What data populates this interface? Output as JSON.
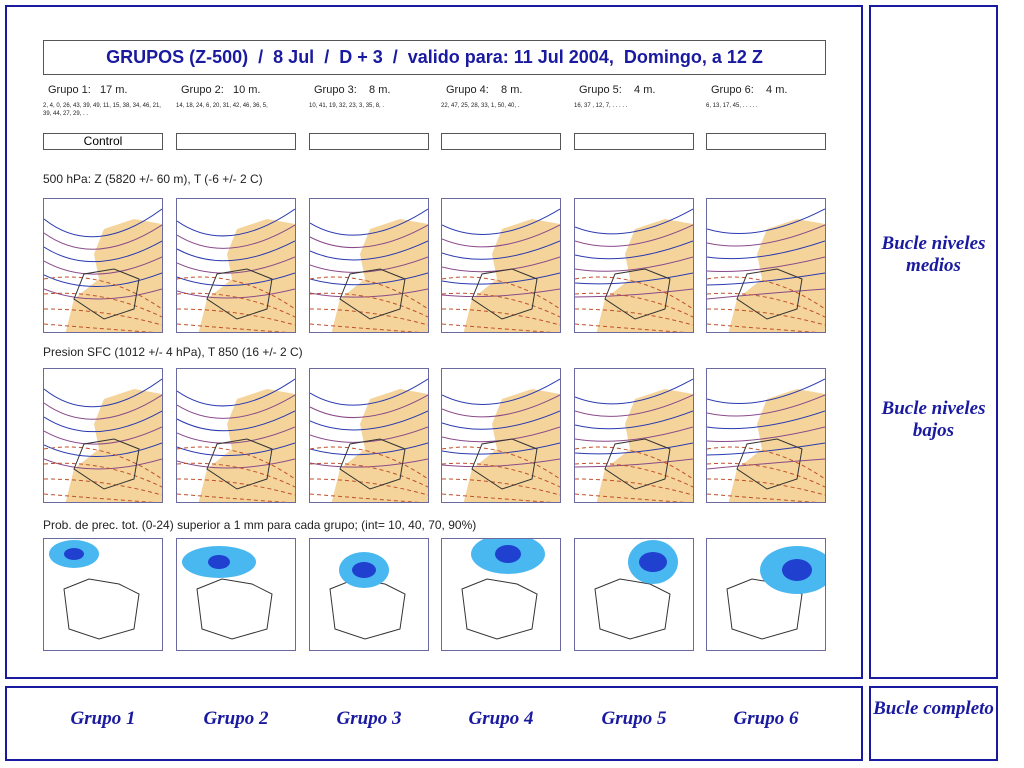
{
  "header": {
    "title": "GRUPOS (Z-500)  /  8 Jul  /  D + 3  /  valido para: 11 Jul 2004,  Domingo, a 12 Z"
  },
  "groups": [
    {
      "label": "Grupo 1:   17 m.",
      "members": "2, 4, 0, 26, 43, 39, 49, 11, 15, 38, 34, 46, 21, 39, 44, 27, 29, . ."
    },
    {
      "label": "Grupo 2:   10 m.",
      "members": "14, 18, 24, 6, 20, 31, 42, 46, 36, 5,"
    },
    {
      "label": "Grupo 3:    8 m.",
      "members": "10, 41, 19, 32, 23, 3, 35, 8, ."
    },
    {
      "label": "Grupo 4:    8 m.",
      "members": "22, 47, 25, 28, 33, 1, 50, 40, ."
    },
    {
      "label": "Grupo 5:    4 m.",
      "members": "16, 37 , 12, 7, . . . . ."
    },
    {
      "label": "Grupo 6:    4 m.",
      "members": "6, 13, 17, 45, . . . . ."
    }
  ],
  "control": "Control",
  "sections": [
    "500 hPa: Z (5820 +/- 60 m), T (-6 +/- 2 C)",
    "Presion SFC (1012 +/- 4 hPa), T 850 (16 +/- 2 C)",
    "Prob. de prec. tot. (0-24) superior a 1 mm para cada grupo; (int= 10, 40, 70, 90%)"
  ],
  "side_links": [
    "Bucle niveles medios",
    "Bucle niveles bajos",
    "Bucle completo"
  ],
  "bottom_links": [
    "Grupo 1",
    "Grupo 2",
    "Grupo 3",
    "Grupo 4",
    "Grupo 5",
    "Grupo 6"
  ]
}
